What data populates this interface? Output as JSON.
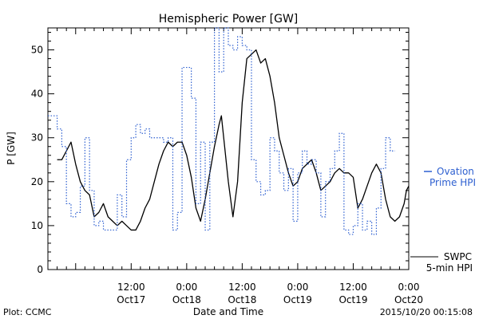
{
  "chart_data": {
    "type": "line",
    "title": "Hemispheric Power [GW]",
    "xlabel": "Date and Time",
    "ylabel": "P [GW]",
    "ylim": [
      0,
      55
    ],
    "yticks": [
      0,
      10,
      20,
      30,
      40,
      50
    ],
    "xlim": [
      "2015-10-16 18:00",
      "2015-10-20 00:00"
    ],
    "xticks": [
      {
        "time": "2015-10-17 12:00",
        "label1": "12:00",
        "label2": "Oct17"
      },
      {
        "time": "2015-10-18 00:00",
        "label1": "0:00",
        "label2": "Oct18"
      },
      {
        "time": "2015-10-18 12:00",
        "label1": "12:00",
        "label2": "Oct18"
      },
      {
        "time": "2015-10-19 00:00",
        "label1": "0:00",
        "label2": "Oct19"
      },
      {
        "time": "2015-10-19 12:00",
        "label1": "12:00",
        "label2": "Oct19"
      },
      {
        "time": "2015-10-20 00:00",
        "label1": "0:00",
        "label2": "Oct20"
      }
    ],
    "series": [
      {
        "name": "SWPC 5-min HPI",
        "style": "solid",
        "color": "#000000",
        "points": [
          [
            "2015-10-16 20:00",
            25
          ],
          [
            "2015-10-16 21:00",
            25
          ],
          [
            "2015-10-16 22:00",
            27
          ],
          [
            "2015-10-16 23:00",
            29
          ],
          [
            "2015-10-17 00:00",
            24
          ],
          [
            "2015-10-17 01:00",
            20
          ],
          [
            "2015-10-17 02:00",
            18
          ],
          [
            "2015-10-17 03:00",
            17
          ],
          [
            "2015-10-17 04:00",
            12
          ],
          [
            "2015-10-17 05:00",
            13
          ],
          [
            "2015-10-17 06:00",
            15
          ],
          [
            "2015-10-17 07:00",
            12
          ],
          [
            "2015-10-17 08:00",
            11
          ],
          [
            "2015-10-17 09:00",
            10
          ],
          [
            "2015-10-17 10:00",
            11
          ],
          [
            "2015-10-17 11:00",
            10
          ],
          [
            "2015-10-17 12:00",
            9
          ],
          [
            "2015-10-17 13:00",
            9
          ],
          [
            "2015-10-17 14:00",
            11
          ],
          [
            "2015-10-17 15:00",
            14
          ],
          [
            "2015-10-17 16:00",
            16
          ],
          [
            "2015-10-17 17:00",
            20
          ],
          [
            "2015-10-17 18:00",
            24
          ],
          [
            "2015-10-17 19:00",
            27
          ],
          [
            "2015-10-17 20:00",
            29
          ],
          [
            "2015-10-17 21:00",
            28
          ],
          [
            "2015-10-17 22:00",
            29
          ],
          [
            "2015-10-17 23:00",
            29
          ],
          [
            "2015-10-18 00:00",
            26
          ],
          [
            "2015-10-18 01:00",
            21
          ],
          [
            "2015-10-18 02:00",
            14
          ],
          [
            "2015-10-18 03:00",
            11
          ],
          [
            "2015-10-18 04:00",
            16
          ],
          [
            "2015-10-18 05:00",
            22
          ],
          [
            "2015-10-18 06:00",
            28
          ],
          [
            "2015-10-18 07:00",
            33
          ],
          [
            "2015-10-18 07:30",
            35
          ],
          [
            "2015-10-18 08:00",
            30
          ],
          [
            "2015-10-18 09:00",
            20
          ],
          [
            "2015-10-18 10:00",
            12
          ],
          [
            "2015-10-18 11:00",
            20
          ],
          [
            "2015-10-18 12:00",
            38
          ],
          [
            "2015-10-18 13:00",
            48
          ],
          [
            "2015-10-18 14:00",
            49
          ],
          [
            "2015-10-18 15:00",
            50
          ],
          [
            "2015-10-18 16:00",
            47
          ],
          [
            "2015-10-18 17:00",
            48
          ],
          [
            "2015-10-18 18:00",
            44
          ],
          [
            "2015-10-18 19:00",
            38
          ],
          [
            "2015-10-18 20:00",
            30
          ],
          [
            "2015-10-18 21:00",
            26
          ],
          [
            "2015-10-18 22:00",
            22
          ],
          [
            "2015-10-18 23:00",
            19
          ],
          [
            "2015-10-19 00:00",
            20
          ],
          [
            "2015-10-19 01:00",
            23
          ],
          [
            "2015-10-19 02:00",
            24
          ],
          [
            "2015-10-19 03:00",
            25
          ],
          [
            "2015-10-19 04:00",
            22
          ],
          [
            "2015-10-19 05:00",
            18
          ],
          [
            "2015-10-19 06:00",
            19
          ],
          [
            "2015-10-19 07:00",
            20
          ],
          [
            "2015-10-19 08:00",
            22
          ],
          [
            "2015-10-19 09:00",
            23
          ],
          [
            "2015-10-19 10:00",
            22
          ],
          [
            "2015-10-19 11:00",
            22
          ],
          [
            "2015-10-19 12:00",
            21
          ],
          [
            "2015-10-19 13:00",
            14
          ],
          [
            "2015-10-19 14:00",
            16
          ],
          [
            "2015-10-19 15:00",
            19
          ],
          [
            "2015-10-19 16:00",
            22
          ],
          [
            "2015-10-19 17:00",
            24
          ],
          [
            "2015-10-19 18:00",
            22
          ],
          [
            "2015-10-19 19:00",
            16
          ],
          [
            "2015-10-19 20:00",
            12
          ],
          [
            "2015-10-19 21:00",
            11
          ],
          [
            "2015-10-19 22:00",
            12
          ],
          [
            "2015-10-19 23:00",
            15
          ],
          [
            "2015-10-19 23:30",
            18
          ],
          [
            "2015-10-20 00:00",
            19
          ]
        ]
      },
      {
        "name": "Ovation Prime HPI",
        "style": "dotted-step",
        "color": "#2d5fd0",
        "points": [
          [
            "2015-10-16 18:00",
            35
          ],
          [
            "2015-10-16 20:00",
            32
          ],
          [
            "2015-10-16 21:00",
            28
          ],
          [
            "2015-10-16 22:00",
            15
          ],
          [
            "2015-10-16 23:00",
            12
          ],
          [
            "2015-10-17 00:00",
            13
          ],
          [
            "2015-10-17 01:00",
            19
          ],
          [
            "2015-10-17 02:00",
            30
          ],
          [
            "2015-10-17 03:00",
            18
          ],
          [
            "2015-10-17 04:00",
            10
          ],
          [
            "2015-10-17 05:00",
            11
          ],
          [
            "2015-10-17 06:00",
            9
          ],
          [
            "2015-10-17 07:00",
            9
          ],
          [
            "2015-10-17 09:00",
            17
          ],
          [
            "2015-10-17 10:00",
            12
          ],
          [
            "2015-10-17 11:00",
            25
          ],
          [
            "2015-10-17 12:00",
            30
          ],
          [
            "2015-10-17 13:00",
            33
          ],
          [
            "2015-10-17 14:00",
            31
          ],
          [
            "2015-10-17 15:00",
            32
          ],
          [
            "2015-10-17 16:00",
            30
          ],
          [
            "2015-10-17 18:00",
            30
          ],
          [
            "2015-10-17 19:00",
            29
          ],
          [
            "2015-10-17 20:00",
            30
          ],
          [
            "2015-10-17 21:00",
            9
          ],
          [
            "2015-10-17 22:00",
            13
          ],
          [
            "2015-10-17 23:00",
            46
          ],
          [
            "2015-10-18 01:00",
            39
          ],
          [
            "2015-10-18 02:00",
            15
          ],
          [
            "2015-10-18 03:00",
            29
          ],
          [
            "2015-10-18 04:00",
            9
          ],
          [
            "2015-10-18 05:00",
            29
          ],
          [
            "2015-10-18 06:00",
            55
          ],
          [
            "2015-10-18 07:00",
            45
          ],
          [
            "2015-10-18 08:00",
            55
          ],
          [
            "2015-10-18 09:00",
            51
          ],
          [
            "2015-10-18 10:00",
            50
          ],
          [
            "2015-10-18 11:00",
            53
          ],
          [
            "2015-10-18 12:00",
            51
          ],
          [
            "2015-10-18 13:00",
            50
          ],
          [
            "2015-10-18 14:00",
            25
          ],
          [
            "2015-10-18 15:00",
            20
          ],
          [
            "2015-10-18 16:00",
            17
          ],
          [
            "2015-10-18 17:00",
            18
          ],
          [
            "2015-10-18 18:00",
            30
          ],
          [
            "2015-10-18 19:00",
            27
          ],
          [
            "2015-10-18 20:00",
            22
          ],
          [
            "2015-10-18 21:00",
            18
          ],
          [
            "2015-10-18 22:00",
            23
          ],
          [
            "2015-10-18 23:00",
            11
          ],
          [
            "2015-10-19 00:00",
            22
          ],
          [
            "2015-10-19 01:00",
            27
          ],
          [
            "2015-10-19 02:00",
            24
          ],
          [
            "2015-10-19 03:00",
            25
          ],
          [
            "2015-10-19 04:00",
            22
          ],
          [
            "2015-10-19 05:00",
            12
          ],
          [
            "2015-10-19 06:00",
            20
          ],
          [
            "2015-10-19 07:00",
            23
          ],
          [
            "2015-10-19 08:00",
            27
          ],
          [
            "2015-10-19 09:00",
            31
          ],
          [
            "2015-10-19 10:00",
            9
          ],
          [
            "2015-10-19 11:00",
            8
          ],
          [
            "2015-10-19 12:00",
            10
          ],
          [
            "2015-10-19 13:00",
            15
          ],
          [
            "2015-10-19 14:00",
            9
          ],
          [
            "2015-10-19 15:00",
            11
          ],
          [
            "2015-10-19 16:00",
            8
          ],
          [
            "2015-10-19 17:00",
            14
          ],
          [
            "2015-10-19 18:00",
            23
          ],
          [
            "2015-10-19 19:00",
            30
          ],
          [
            "2015-10-19 20:00",
            27
          ]
        ]
      }
    ],
    "legend": [
      {
        "lines": [
          "Ovation",
          "Prime HPI"
        ],
        "series": "Ovation Prime HPI",
        "placement": "right",
        "color": "#2d5fd0"
      },
      {
        "lines": [
          "SWPC",
          "5-min HPI"
        ],
        "series": "SWPC 5-min HPI",
        "placement": "right-bottom",
        "color": "#000000"
      }
    ]
  },
  "footer": {
    "plot_credit": "Plot: CCMC",
    "timestamp": "2015/10/20 00:15:08"
  }
}
